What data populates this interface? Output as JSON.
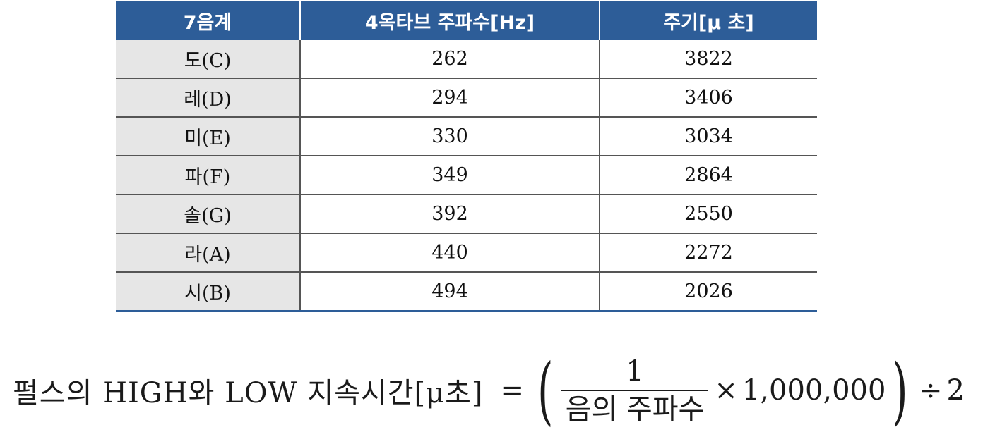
{
  "table": {
    "headers": [
      "7음계",
      "4옥타브 주파수[Hz]",
      "주기[μ 초]"
    ],
    "rows": [
      [
        "도(C)",
        "262",
        "3822"
      ],
      [
        "레(D)",
        "294",
        "3406"
      ],
      [
        "미(E)",
        "330",
        "3034"
      ],
      [
        "파(F)",
        "349",
        "2864"
      ],
      [
        "솔(G)",
        "392",
        "2550"
      ],
      [
        "라(A)",
        "440",
        "2272"
      ],
      [
        "시(B)",
        "494",
        "2026"
      ]
    ],
    "colors": {
      "header_bg": "#2d5d98",
      "header_text": "#ffffff",
      "first_col_bg": "#e6e6e6"
    }
  },
  "formula": {
    "lhs": "펄스의 HIGH와 LOW 지속시간[μ초]",
    "equals": "=",
    "open_paren": "(",
    "numerator": "1",
    "denominator": "음의 주파수",
    "times": "×",
    "multiplier": "1,000,000",
    "close_paren": ")",
    "divide": "÷",
    "divisor": "2"
  }
}
